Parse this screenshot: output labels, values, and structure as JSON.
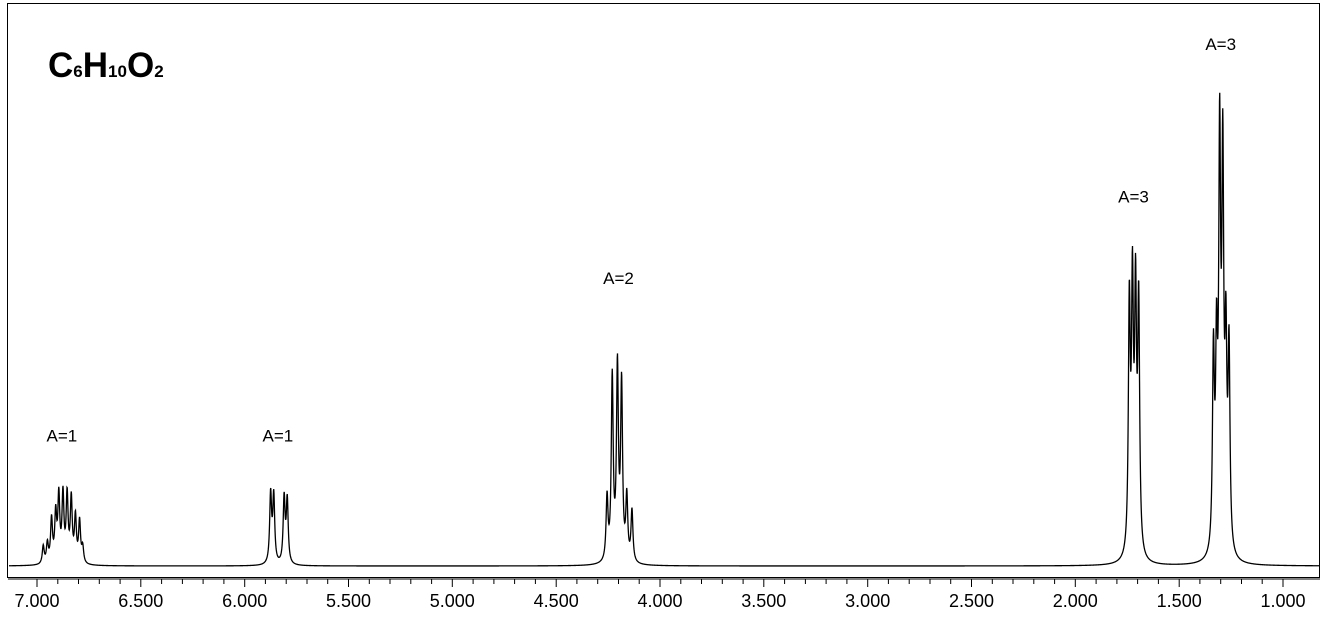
{
  "formula": {
    "element1": "C",
    "sub1": "6",
    "element2": "H",
    "sub2": "10",
    "element3": "O",
    "sub3": "2"
  },
  "chart_data": {
    "type": "line",
    "title": "C6H10O2",
    "xlabel": "",
    "ylabel": "",
    "x_axis": {
      "min": 0.94,
      "max": 7.05,
      "reversed": true,
      "major_ticks": [
        7.0,
        6.5,
        6.0,
        5.5,
        5.0,
        4.5,
        4.0,
        3.5,
        3.0,
        2.5,
        2.0,
        1.5,
        1.0
      ],
      "tick_labels": [
        "7.000",
        "6.500",
        "6.000",
        "5.500",
        "5.000",
        "4.500",
        "4.000",
        "3.500",
        "3.000",
        "2.500",
        "2.000",
        "1.500",
        "1.000"
      ],
      "minor_tick_step": 0.1
    },
    "y_axis": {
      "min": 0,
      "max": 1.0,
      "shown": false
    },
    "grid": false,
    "line_color": "#000000",
    "peaks": [
      {
        "label": "A=1",
        "label_x": 6.88,
        "label_height": 0.26,
        "lines": [
          {
            "ppm": 6.97,
            "height": 0.045
          },
          {
            "ppm": 6.95,
            "height": 0.05
          },
          {
            "ppm": 6.93,
            "height": 0.11
          },
          {
            "ppm": 6.91,
            "height": 0.12
          },
          {
            "ppm": 6.895,
            "height": 0.165
          },
          {
            "ppm": 6.875,
            "height": 0.17
          },
          {
            "ppm": 6.855,
            "height": 0.168
          },
          {
            "ppm": 6.835,
            "height": 0.16
          },
          {
            "ppm": 6.815,
            "height": 0.115
          },
          {
            "ppm": 6.795,
            "height": 0.105
          },
          {
            "ppm": 6.78,
            "height": 0.04
          }
        ]
      },
      {
        "label": "A=1",
        "label_x": 5.84,
        "label_height": 0.26,
        "lines": [
          {
            "ppm": 5.875,
            "height": 0.175
          },
          {
            "ppm": 5.86,
            "height": 0.17
          },
          {
            "ppm": 5.81,
            "height": 0.165
          },
          {
            "ppm": 5.795,
            "height": 0.16
          }
        ]
      },
      {
        "label": "A=2",
        "label_x": 4.2,
        "label_height": 0.59,
        "lines": [
          {
            "ppm": 4.255,
            "height": 0.16
          },
          {
            "ppm": 4.23,
            "height": 0.46
          },
          {
            "ppm": 4.205,
            "height": 0.48
          },
          {
            "ppm": 4.185,
            "height": 0.44
          },
          {
            "ppm": 4.16,
            "height": 0.16
          },
          {
            "ppm": 4.135,
            "height": 0.13
          }
        ]
      },
      {
        "label": "A=3",
        "label_x": 1.72,
        "label_height": 0.76,
        "lines": [
          {
            "ppm": 1.74,
            "height": 0.62
          },
          {
            "ppm": 1.725,
            "height": 0.64
          },
          {
            "ppm": 1.71,
            "height": 0.62
          },
          {
            "ppm": 1.695,
            "height": 0.62
          }
        ]
      },
      {
        "label": "A=3",
        "label_x": 1.3,
        "label_height": 1.08,
        "lines": [
          {
            "ppm": 1.335,
            "height": 0.49
          },
          {
            "ppm": 1.32,
            "height": 0.46
          },
          {
            "ppm": 1.305,
            "height": 0.99
          },
          {
            "ppm": 1.29,
            "height": 0.94
          },
          {
            "ppm": 1.275,
            "height": 0.48
          },
          {
            "ppm": 1.26,
            "height": 0.5
          }
        ]
      }
    ]
  }
}
